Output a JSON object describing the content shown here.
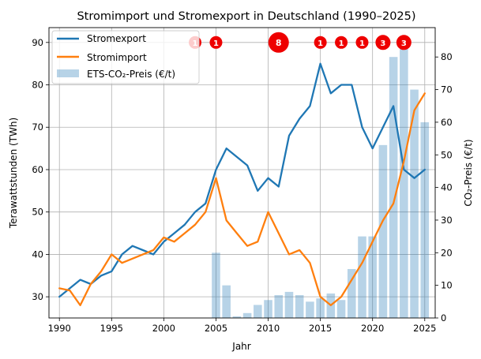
{
  "chart_data": {
    "type": "line",
    "title": "Stromimport und Stromexport in Deutschland (1990–2025)",
    "xlabel": "Jahr",
    "ylabel": "Terawattstunden (TWh)",
    "y2label": "CO₂-Preis (€/t)",
    "xlim": [
      1989,
      2026
    ],
    "ylim": [
      25,
      93.5
    ],
    "y2lim": [
      0,
      89
    ],
    "xticks": [
      1990,
      1995,
      2000,
      2005,
      2010,
      2015,
      2020,
      2025
    ],
    "yticks": [
      30,
      40,
      50,
      60,
      70,
      80,
      90
    ],
    "y2ticks": [
      0,
      10,
      20,
      30,
      40,
      50,
      60,
      70,
      80
    ],
    "grid": true,
    "legend_position": "top-left",
    "series": [
      {
        "name": "Stromexport",
        "type": "line",
        "axis": "left",
        "color": "#1f77b4",
        "x": [
          1990,
          1991,
          1992,
          1993,
          1994,
          1995,
          1996,
          1997,
          1998,
          1999,
          2000,
          2001,
          2002,
          2003,
          2004,
          2005,
          2006,
          2007,
          2008,
          2009,
          2010,
          2011,
          2012,
          2013,
          2014,
          2015,
          2016,
          2017,
          2018,
          2019,
          2020,
          2021,
          2022,
          2023,
          2024,
          2025
        ],
        "values": [
          30,
          32,
          34,
          33,
          35,
          36,
          40,
          42,
          41,
          40,
          43,
          45,
          47,
          50,
          52,
          60,
          65,
          63,
          61,
          55,
          58,
          56,
          68,
          72,
          75,
          85,
          78,
          80,
          80,
          70,
          65,
          70,
          75,
          60,
          58,
          60
        ]
      },
      {
        "name": "Stromimport",
        "type": "line",
        "axis": "left",
        "color": "#ff7f0e",
        "x": [
          1990,
          1991,
          1992,
          1993,
          1994,
          1995,
          1996,
          1997,
          1998,
          1999,
          2000,
          2001,
          2002,
          2003,
          2004,
          2005,
          2006,
          2007,
          2008,
          2009,
          2010,
          2011,
          2012,
          2013,
          2014,
          2015,
          2016,
          2017,
          2018,
          2019,
          2020,
          2021,
          2022,
          2023,
          2024,
          2025
        ],
        "values": [
          32,
          31.5,
          28,
          33,
          36,
          40,
          38,
          39,
          40,
          41,
          44,
          43,
          45,
          47,
          50,
          58,
          48,
          45,
          42,
          43,
          50,
          45,
          40,
          41,
          38,
          30,
          28,
          30,
          34,
          38,
          43,
          48,
          52,
          62,
          74,
          78
        ]
      },
      {
        "name": "ETS-CO₂-Preis (€/t)",
        "type": "bar",
        "axis": "right",
        "color": "#1f77b4",
        "x": [
          2005,
          2006,
          2007,
          2008,
          2009,
          2010,
          2011,
          2012,
          2013,
          2014,
          2015,
          2016,
          2017,
          2018,
          2019,
          2020,
          2021,
          2022,
          2023,
          2024,
          2025
        ],
        "values": [
          20,
          10,
          0.5,
          1.5,
          4,
          5.5,
          7,
          8,
          7,
          5,
          6,
          7.5,
          5.5,
          15,
          25,
          25,
          53,
          80,
          83,
          70,
          60
        ]
      }
    ],
    "events": [
      {
        "year": 2003,
        "count": "1"
      },
      {
        "year": 2005,
        "count": "1"
      },
      {
        "year": 2011,
        "count": "8"
      },
      {
        "year": 2015,
        "count": "1"
      },
      {
        "year": 2017,
        "count": "1"
      },
      {
        "year": 2019,
        "count": "1"
      },
      {
        "year": 2021,
        "count": "3"
      },
      {
        "year": 2023,
        "count": "3"
      }
    ],
    "event_y": 90,
    "event_color": "#ee0000"
  }
}
